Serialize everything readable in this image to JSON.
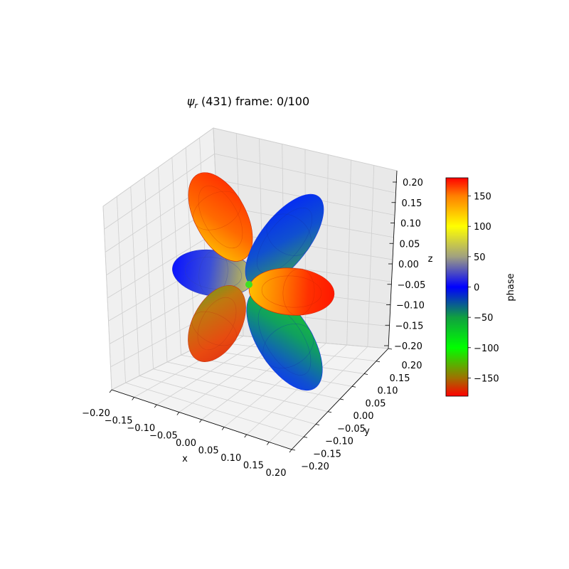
{
  "chart_data": {
    "type": "surface3d",
    "title_symbol": "ψ",
    "title_sub": "r",
    "title_rest": " (431) frame: 0/100",
    "xlabel": "x",
    "ylabel": "y",
    "zlabel": "z",
    "xlim": [
      -0.2,
      0.2
    ],
    "ylim": [
      -0.2,
      0.2
    ],
    "zlim": [
      -0.2,
      0.2
    ],
    "x_ticks": [
      "−0.20",
      "−0.15",
      "−0.10",
      "−0.05",
      "0.00",
      "0.05",
      "0.10",
      "0.15",
      "0.20"
    ],
    "y_ticks": [
      "−0.20",
      "−0.15",
      "−0.10",
      "−0.05",
      "0.00",
      "0.05",
      "0.10",
      "0.15",
      "0.20"
    ],
    "z_ticks": [
      "−0.20",
      "−0.15",
      "−0.10",
      "−0.05",
      "0.00",
      "0.05",
      "0.10",
      "0.15",
      "0.20"
    ],
    "x_tick_values": [
      -0.2,
      -0.15,
      -0.1,
      -0.05,
      0,
      0.05,
      0.1,
      0.15,
      0.2
    ],
    "grid": true,
    "lobes": [
      {
        "name": "lobe-upper-left",
        "color": "#ff3300",
        "phase_deg": 170
      },
      {
        "name": "lobe-upper-right",
        "color": "#1133ff",
        "phase_deg": 0
      },
      {
        "name": "lobe-left",
        "color": "#1022ff",
        "phase_deg": 10
      },
      {
        "name": "lobe-right",
        "color": "#ff2200",
        "phase_deg": 175
      },
      {
        "name": "lobe-lower-left",
        "color": "#e83a10",
        "phase_deg": -170
      },
      {
        "name": "lobe-lower-right",
        "color": "#1040ff",
        "phase_deg": -10
      }
    ],
    "colorbar": {
      "label": "phase",
      "range": [
        -180,
        180
      ],
      "ticks": [
        "150",
        "100",
        "50",
        "0",
        "−50",
        "−100",
        "−150"
      ],
      "tick_values": [
        150,
        100,
        50,
        0,
        -50,
        -100,
        -150
      ],
      "colormap_stops": [
        {
          "value": -180,
          "color": "#ff0000"
        },
        {
          "value": -150,
          "color": "#a07000"
        },
        {
          "value": -100,
          "color": "#00ff00"
        },
        {
          "value": -50,
          "color": "#10a040"
        },
        {
          "value": 0,
          "color": "#0000ff"
        },
        {
          "value": 50,
          "color": "#a0a080"
        },
        {
          "value": 100,
          "color": "#ffff00"
        },
        {
          "value": 150,
          "color": "#ff8000"
        },
        {
          "value": 180,
          "color": "#ff0000"
        }
      ]
    }
  }
}
